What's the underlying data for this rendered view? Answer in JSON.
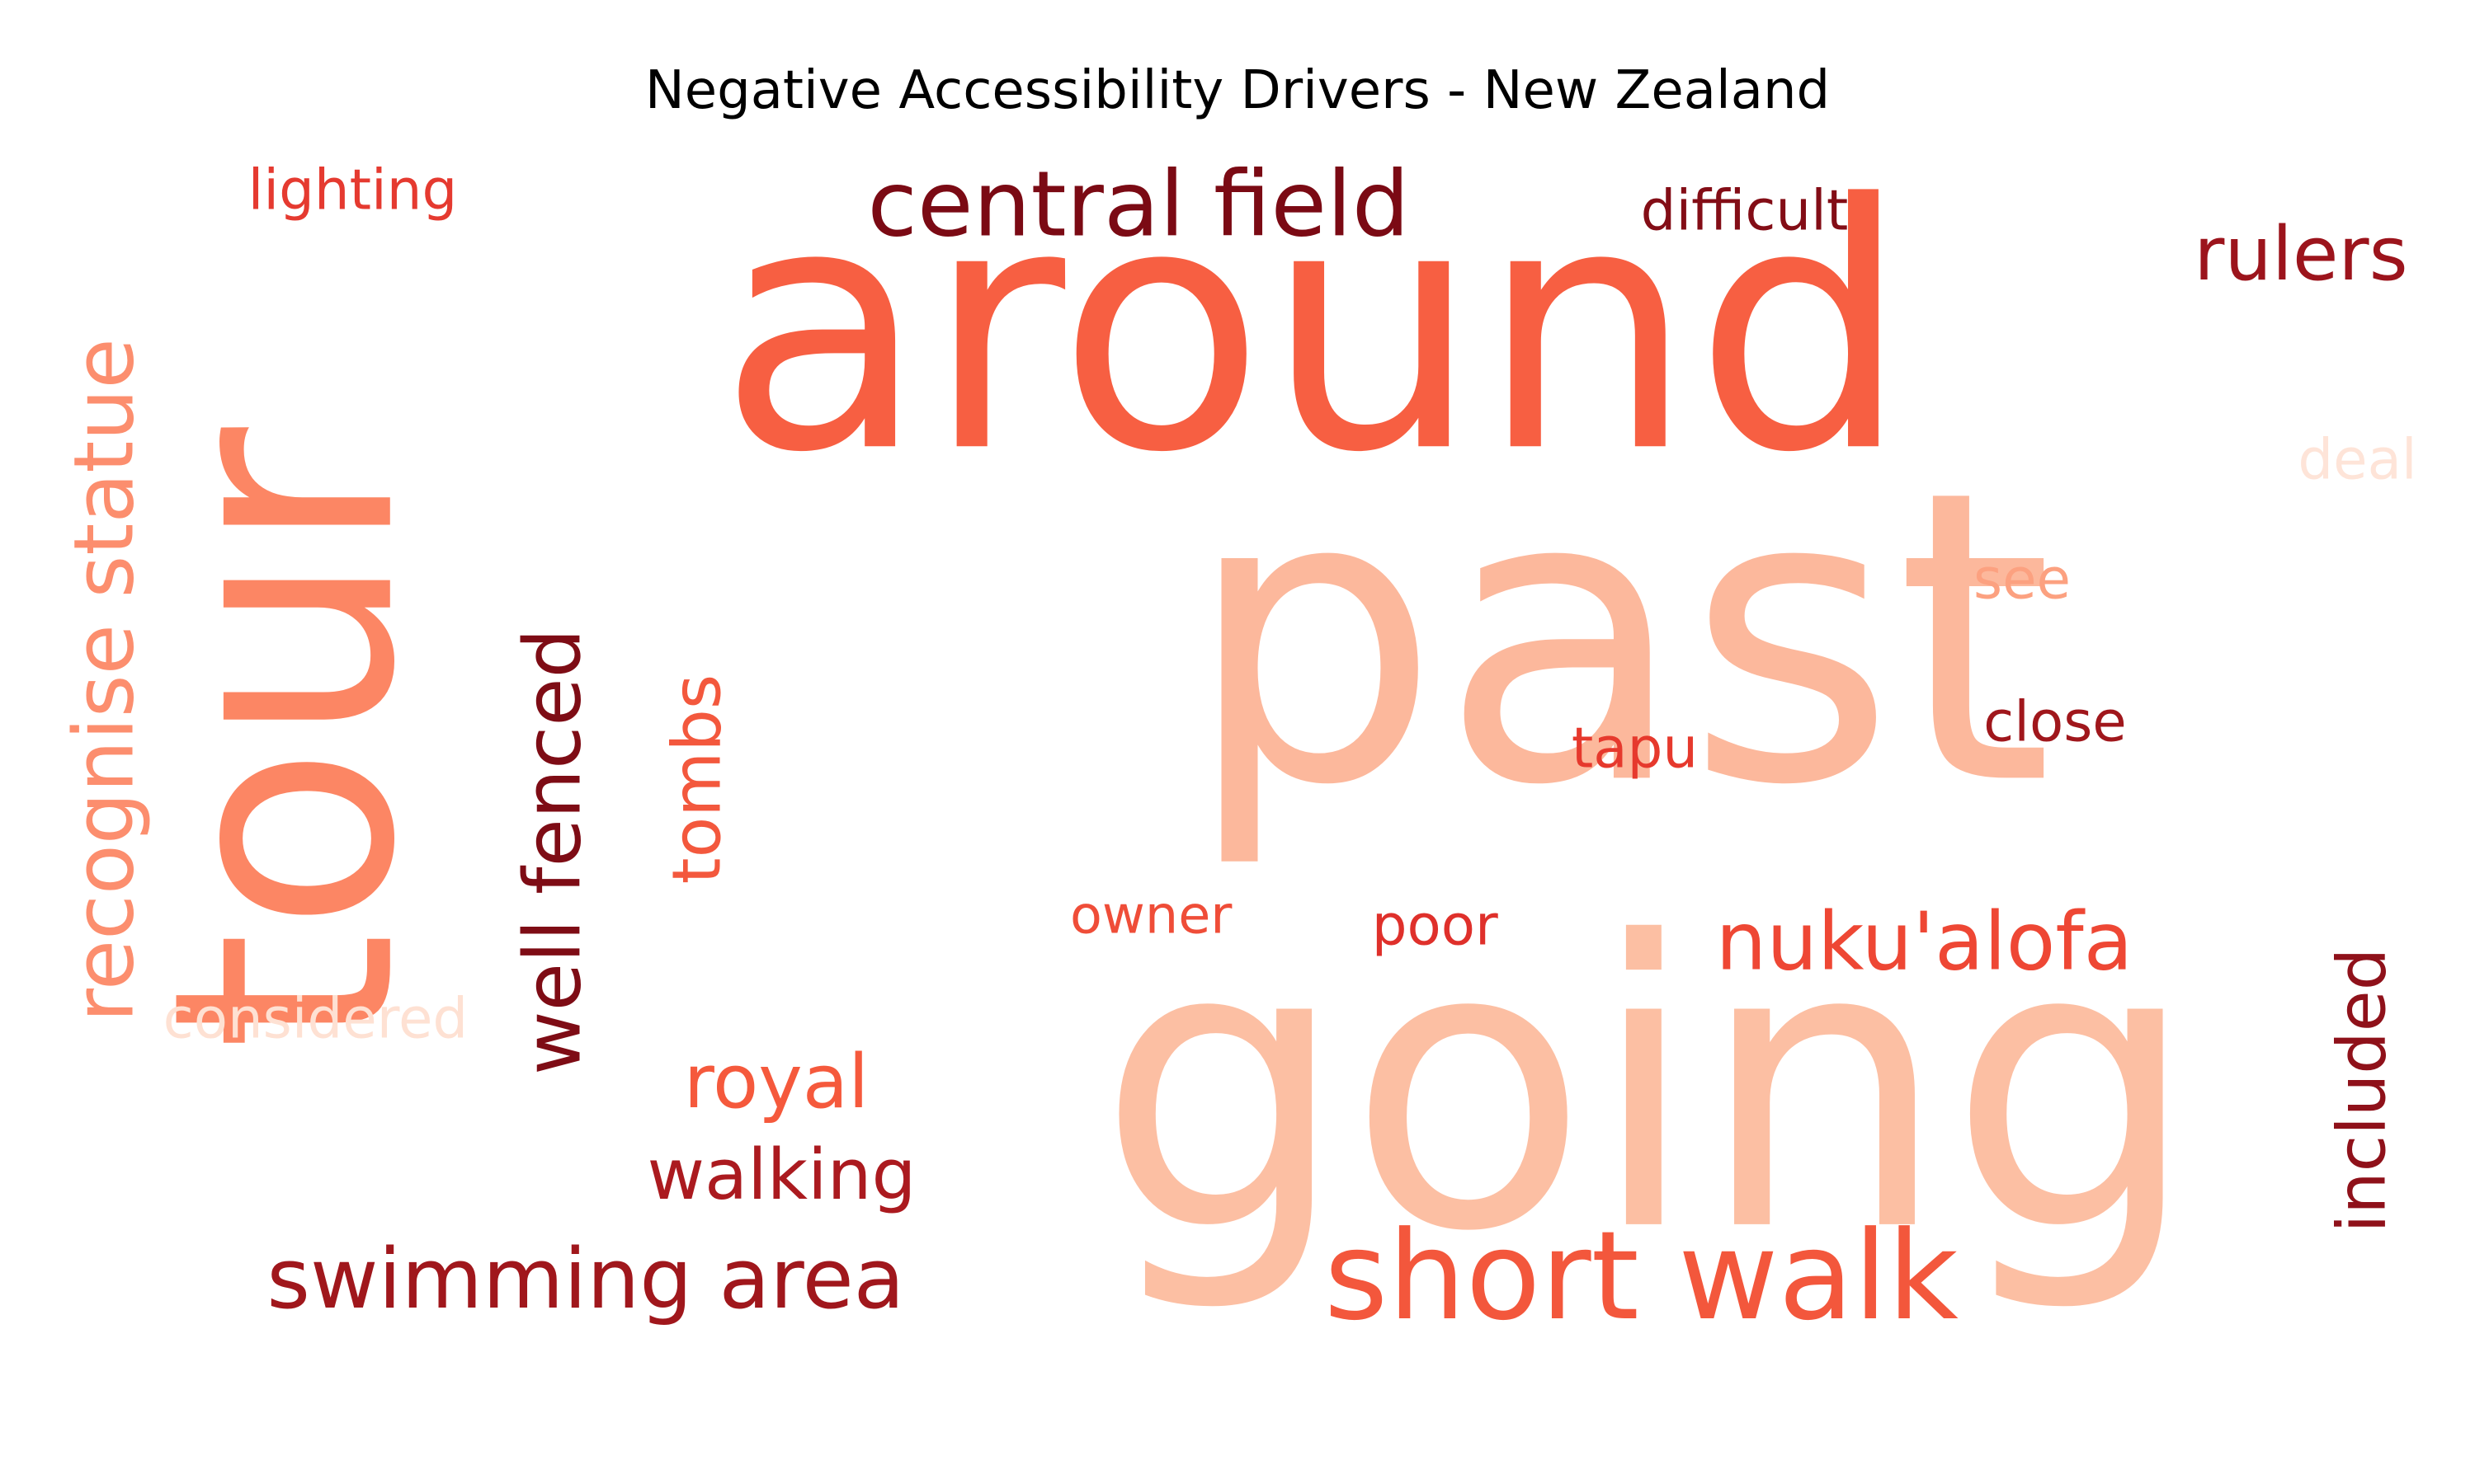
{
  "chart_data": {
    "type": "wordcloud",
    "title": "Negative Accessibility Drivers - New Zealand",
    "colormap": "Reds",
    "words": [
      {
        "text": "past",
        "color": "#fcb89c"
      },
      {
        "text": "around",
        "color": "#f75f42"
      },
      {
        "text": "going",
        "color": "#fcbfa3"
      },
      {
        "text": "tour",
        "color": "#fc8664"
      },
      {
        "text": "short walk",
        "color": "#f3573c"
      },
      {
        "text": "central field",
        "color": "#7b0a14"
      },
      {
        "text": "recognise statue",
        "color": "#fc8e6e"
      },
      {
        "text": "well fenced",
        "color": "#7e0c15"
      },
      {
        "text": "swimming area",
        "color": "#a0171c"
      },
      {
        "text": "nuku'alofa",
        "color": "#ee4734"
      },
      {
        "text": "included",
        "color": "#8f111a"
      },
      {
        "text": "walking",
        "color": "#ab1a1f"
      },
      {
        "text": "royal",
        "color": "#f5593c"
      },
      {
        "text": "tombs",
        "color": "#f3583d"
      },
      {
        "text": "rulers",
        "color": "#9c141c"
      },
      {
        "text": "difficult",
        "color": "#830d16"
      },
      {
        "text": "lighting",
        "color": "#e53a30"
      },
      {
        "text": "close",
        "color": "#a0171c"
      },
      {
        "text": "tapu",
        "color": "#e6392d"
      },
      {
        "text": "poor",
        "color": "#df302b"
      },
      {
        "text": "owner",
        "color": "#ef4d38"
      },
      {
        "text": "see",
        "color": "#fca180"
      },
      {
        "text": "considered",
        "color": "#fee1d3"
      },
      {
        "text": "deal",
        "color": "#fee4d8"
      }
    ]
  }
}
